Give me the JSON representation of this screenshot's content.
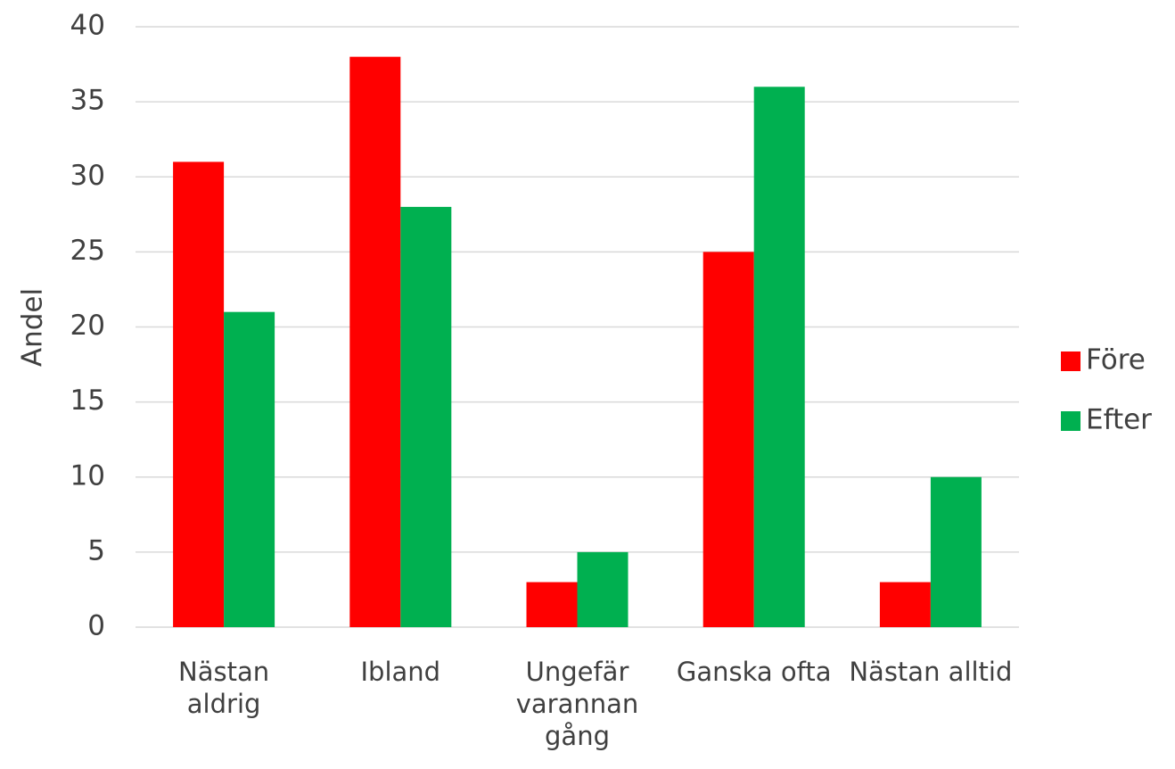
{
  "chart_data": {
    "type": "bar",
    "y_label": "Andel",
    "categories": [
      "Nästan aldrig",
      "Ibland",
      "Ungefär varannan gång",
      "Ganska ofta",
      "Nästan alltid"
    ],
    "series": [
      {
        "name": "Före",
        "color": "#ff0000",
        "values": [
          31,
          38,
          3,
          25,
          3
        ]
      },
      {
        "name": "Efter",
        "color": "#00b050",
        "values": [
          21,
          28,
          5,
          36,
          10
        ]
      }
    ],
    "ylim": [
      0,
      40
    ],
    "yticks": [
      0,
      5,
      10,
      15,
      20,
      25,
      30,
      35,
      40
    ],
    "grid": true,
    "legend": "right"
  }
}
